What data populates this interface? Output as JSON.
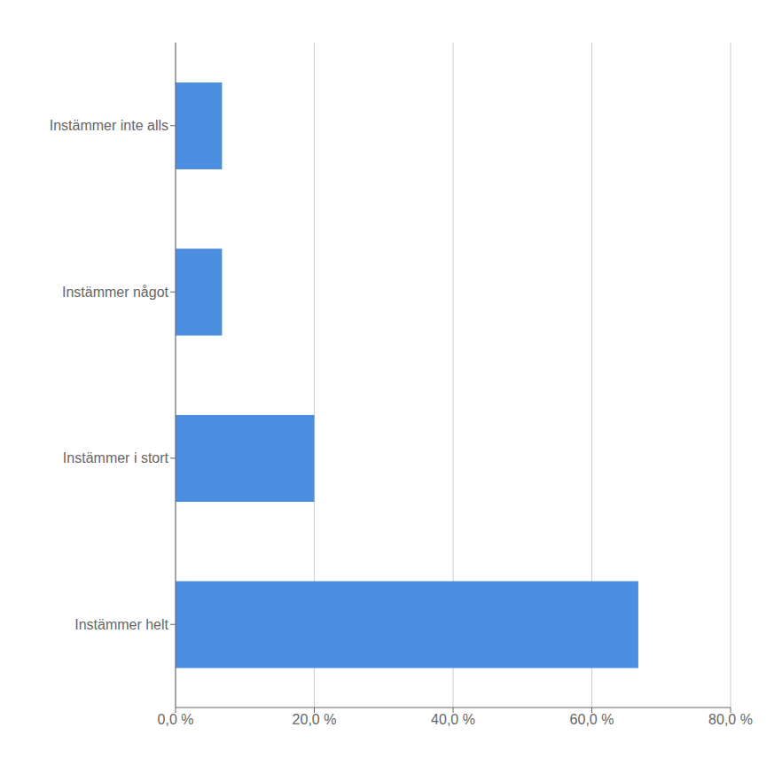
{
  "chart_data": {
    "type": "bar",
    "orientation": "horizontal",
    "categories": [
      "Instämmer helt",
      "Instämmer i stort",
      "Instämmer något",
      "Instämmer inte alls"
    ],
    "values": [
      66.7,
      20.0,
      6.7,
      6.7
    ],
    "color": "#4C8FE0",
    "xlim": [
      0,
      80
    ],
    "xticks": [
      {
        "value": 0,
        "label": "0,0 %"
      },
      {
        "value": 20,
        "label": "20,0 %"
      },
      {
        "value": 40,
        "label": "40,0 %"
      },
      {
        "value": 60,
        "label": "60,0 %"
      },
      {
        "value": 80,
        "label": "80,0 %"
      }
    ],
    "grid": true
  }
}
